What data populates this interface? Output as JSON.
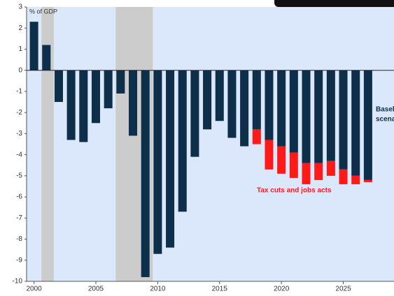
{
  "chart_data": {
    "type": "bar",
    "ylabel": "% of GDP",
    "x": [
      2000,
      2001,
      2002,
      2003,
      2004,
      2005,
      2006,
      2007,
      2008,
      2009,
      2010,
      2011,
      2012,
      2013,
      2014,
      2015,
      2016,
      2017,
      2018,
      2019,
      2020,
      2021,
      2022,
      2023,
      2024,
      2025,
      2026,
      2027
    ],
    "series": [
      {
        "color": "#0d2f4a",
        "values": [
          2.3,
          1.2,
          -1.5,
          -3.3,
          -3.4,
          -2.5,
          -1.8,
          -1.1,
          -3.1,
          -9.8,
          -8.7,
          -8.4,
          -6.7,
          -4.1,
          -2.8,
          -2.4,
          -3.2,
          -3.6,
          -2.8,
          -3.3,
          -3.6,
          -3.9,
          -4.4,
          -4.4,
          -4.3,
          -4.7,
          -5.0,
          -5.2
        ]
      },
      {
        "name": "Tax cuts and jobs acts",
        "color": "#ff1a1a",
        "values": [
          null,
          null,
          null,
          null,
          null,
          null,
          null,
          null,
          null,
          null,
          null,
          null,
          null,
          null,
          null,
          null,
          null,
          null,
          -0.7,
          -1.4,
          -1.3,
          -1.2,
          -1.0,
          -0.8,
          -0.7,
          -0.7,
          -0.4,
          -0.1
        ]
      }
    ],
    "annotations": [
      "Basel",
      "scena"
    ],
    "shaded_periods": [
      [
        2000.6,
        2001.6
      ],
      [
        2006.6,
        2009.6
      ]
    ],
    "xlim": [
      1999.4,
      2029.1
    ],
    "xticks": [
      2000,
      2005,
      2010,
      2015,
      2020,
      2025
    ],
    "ylim": [
      -10,
      3
    ],
    "yticks": [
      3,
      2,
      1,
      0,
      -1,
      -2,
      -3,
      -4,
      -5,
      -6,
      -7,
      -8,
      -9,
      -10
    ]
  }
}
